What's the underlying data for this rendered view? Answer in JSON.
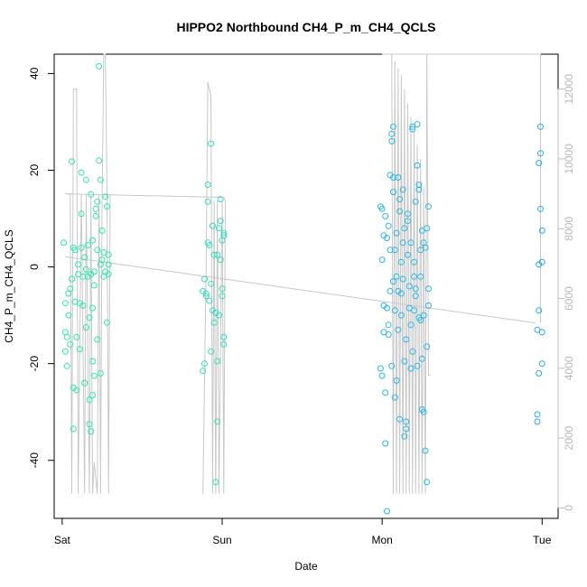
{
  "chart_data": {
    "type": "scatter",
    "title": "HIPPO2 Northbound CH4_P_m_CH4_QCLS",
    "xlabel": "Date",
    "ylabel": "CH4_P_m_CH4_QCLS",
    "x_ticks": [
      "Sat",
      "Sun",
      "Mon",
      "Tue"
    ],
    "y_ticks": [
      "-40",
      "-20",
      "0",
      "20",
      "40"
    ],
    "y2_ticks": [
      "0",
      "2000",
      "4000",
      "6000",
      "8000",
      "10000",
      "12000"
    ],
    "xlim": [
      -0.05,
      3.1
    ],
    "ylim": [
      -52,
      44
    ],
    "y2lim": [
      -300,
      13000
    ],
    "grid": false,
    "colors": {
      "sat_points": "#2de8a8",
      "sun_points": "#34dcc0",
      "mon_points": "#2bb6e3",
      "tue_points": "#26a9ea",
      "secondary_lines": "#c8c8c8",
      "axes": "#000000"
    },
    "series": [
      {
        "points": [
          {
            "x": 0.01,
            "y": 5
          },
          {
            "x": 0.02,
            "y": -7.5
          },
          {
            "x": 0.02,
            "y": -13.5
          },
          {
            "x": 0.02,
            "y": -17.5
          },
          {
            "x": 0.03,
            "y": -14.5
          },
          {
            "x": 0.03,
            "y": -20.5
          },
          {
            "x": 0.04,
            "y": -5.5
          },
          {
            "x": 0.04,
            "y": -10
          },
          {
            "x": 0.05,
            "y": -16
          },
          {
            "x": 0.05,
            "y": -4.5
          },
          {
            "x": 0.06,
            "y": 21.8
          },
          {
            "x": 0.06,
            "y": -2.5
          },
          {
            "x": 0.07,
            "y": 4
          },
          {
            "x": 0.07,
            "y": -25
          },
          {
            "x": 0.07,
            "y": -33.5
          },
          {
            "x": 0.08,
            "y": 3.5
          },
          {
            "x": 0.08,
            "y": -7.2
          },
          {
            "x": 0.09,
            "y": -25.5
          },
          {
            "x": 0.09,
            "y": -14.5
          },
          {
            "x": 0.1,
            "y": 0.5
          },
          {
            "x": 0.1,
            "y": -1.5
          },
          {
            "x": 0.11,
            "y": -7.5
          },
          {
            "x": 0.11,
            "y": -17
          },
          {
            "x": 0.12,
            "y": 19.5
          },
          {
            "x": 0.12,
            "y": 4
          },
          {
            "x": 0.12,
            "y": 11
          },
          {
            "x": 0.13,
            "y": -8
          },
          {
            "x": 0.13,
            "y": -2
          },
          {
            "x": 0.14,
            "y": -24
          },
          {
            "x": 0.14,
            "y": 2
          },
          {
            "x": 0.15,
            "y": -12.5
          },
          {
            "x": 0.15,
            "y": 18
          },
          {
            "x": 0.15,
            "y": -0.5
          },
          {
            "x": 0.16,
            "y": 4.5
          },
          {
            "x": 0.16,
            "y": -2
          },
          {
            "x": 0.17,
            "y": -27.5
          },
          {
            "x": 0.17,
            "y": -32.5
          },
          {
            "x": 0.17,
            "y": -10.5
          },
          {
            "x": 0.18,
            "y": 15
          },
          {
            "x": 0.18,
            "y": -1.5
          },
          {
            "x": 0.18,
            "y": -34
          },
          {
            "x": 0.19,
            "y": -26.5
          },
          {
            "x": 0.19,
            "y": -19.5
          },
          {
            "x": 0.19,
            "y": -8.5
          },
          {
            "x": 0.19,
            "y": 5.5
          },
          {
            "x": 0.2,
            "y": -1
          },
          {
            "x": 0.2,
            "y": -3.8
          },
          {
            "x": 0.2,
            "y": -22.5
          },
          {
            "x": 0.21,
            "y": 10.5
          },
          {
            "x": 0.21,
            "y": 12
          },
          {
            "x": 0.22,
            "y": -15
          },
          {
            "x": 0.22,
            "y": 13.5
          },
          {
            "x": 0.22,
            "y": 3.5
          },
          {
            "x": 0.23,
            "y": 41.5
          },
          {
            "x": 0.23,
            "y": 22
          },
          {
            "x": 0.24,
            "y": 18
          },
          {
            "x": 0.24,
            "y": -22
          },
          {
            "x": 0.24,
            "y": 0.5
          },
          {
            "x": 0.25,
            "y": 7.5
          },
          {
            "x": 0.25,
            "y": 1.5
          },
          {
            "x": 0.26,
            "y": -2
          },
          {
            "x": 0.26,
            "y": 3
          },
          {
            "x": 0.27,
            "y": -1
          },
          {
            "x": 0.27,
            "y": 14.5
          },
          {
            "x": 0.28,
            "y": 12.5
          },
          {
            "x": 0.28,
            "y": -11.5
          },
          {
            "x": 0.29,
            "y": 2.5
          },
          {
            "x": 0.29,
            "y": -1.5
          },
          {
            "x": 0.29,
            "y": 0.5
          }
        ],
        "color": "#2de8a8"
      },
      {
        "points": [
          {
            "x": 0.88,
            "y": -21.5
          },
          {
            "x": 0.88,
            "y": -5
          },
          {
            "x": 0.89,
            "y": -2.5
          },
          {
            "x": 0.89,
            "y": -20
          },
          {
            "x": 0.9,
            "y": -5.5
          },
          {
            "x": 0.9,
            "y": -6
          },
          {
            "x": 0.91,
            "y": 17
          },
          {
            "x": 0.91,
            "y": 13.5
          },
          {
            "x": 0.91,
            "y": 5
          },
          {
            "x": 0.92,
            "y": -7
          },
          {
            "x": 0.92,
            "y": 4.5
          },
          {
            "x": 0.93,
            "y": 25.5
          },
          {
            "x": 0.93,
            "y": -3.5
          },
          {
            "x": 0.93,
            "y": -17.5
          },
          {
            "x": 0.94,
            "y": 8.5
          },
          {
            "x": 0.94,
            "y": -9
          },
          {
            "x": 0.95,
            "y": -11.5
          },
          {
            "x": 0.95,
            "y": 2.5
          },
          {
            "x": 0.96,
            "y": -9.5
          },
          {
            "x": 0.96,
            "y": -44.5
          },
          {
            "x": 0.97,
            "y": -19.5
          },
          {
            "x": 0.97,
            "y": -32
          },
          {
            "x": 0.97,
            "y": 2.5
          },
          {
            "x": 0.98,
            "y": 8
          },
          {
            "x": 0.98,
            "y": -10
          },
          {
            "x": 0.99,
            "y": 1.5
          },
          {
            "x": 0.99,
            "y": 14
          },
          {
            "x": 0.99,
            "y": 9.5
          },
          {
            "x": 1.0,
            "y": -4.5
          },
          {
            "x": 1.0,
            "y": -6
          },
          {
            "x": 1.0,
            "y": 5.5
          },
          {
            "x": 1.01,
            "y": 7
          },
          {
            "x": 1.01,
            "y": 6.5
          },
          {
            "x": 1.01,
            "y": -16
          },
          {
            "x": 1.01,
            "y": -14.5
          }
        ],
        "color": "#34dcc0"
      },
      {
        "points": [
          {
            "x": 1.99,
            "y": 12.5
          },
          {
            "x": 1.99,
            "y": -21
          },
          {
            "x": 2.0,
            "y": 1.5
          },
          {
            "x": 2.0,
            "y": -22.5
          },
          {
            "x": 2.0,
            "y": 12
          },
          {
            "x": 2.01,
            "y": 6.5
          },
          {
            "x": 2.01,
            "y": -8
          },
          {
            "x": 2.01,
            "y": -13.5
          },
          {
            "x": 2.02,
            "y": 10.5
          },
          {
            "x": 2.02,
            "y": -26
          },
          {
            "x": 2.02,
            "y": -36.5
          },
          {
            "x": 2.03,
            "y": -8.5
          },
          {
            "x": 2.03,
            "y": -50.5
          },
          {
            "x": 2.03,
            "y": 6
          },
          {
            "x": 2.04,
            "y": -12
          },
          {
            "x": 2.04,
            "y": -14
          },
          {
            "x": 2.04,
            "y": 8.5
          },
          {
            "x": 2.05,
            "y": 3.5
          },
          {
            "x": 2.05,
            "y": -5
          },
          {
            "x": 2.05,
            "y": 19
          },
          {
            "x": 2.06,
            "y": -20.5
          },
          {
            "x": 2.06,
            "y": 26
          },
          {
            "x": 2.06,
            "y": 27.5
          },
          {
            "x": 2.07,
            "y": -3
          },
          {
            "x": 2.07,
            "y": 29
          },
          {
            "x": 2.07,
            "y": 18.5
          },
          {
            "x": 2.07,
            "y": 15.5
          },
          {
            "x": 2.08,
            "y": 3.5
          },
          {
            "x": 2.08,
            "y": -9
          },
          {
            "x": 2.08,
            "y": -27
          },
          {
            "x": 2.09,
            "y": 7
          },
          {
            "x": 2.09,
            "y": -2
          },
          {
            "x": 2.09,
            "y": -23.5
          },
          {
            "x": 2.1,
            "y": -13
          },
          {
            "x": 2.1,
            "y": 18.5
          },
          {
            "x": 2.1,
            "y": -5
          },
          {
            "x": 2.11,
            "y": -31.5
          },
          {
            "x": 2.11,
            "y": 14
          },
          {
            "x": 2.11,
            "y": 11.5
          },
          {
            "x": 2.12,
            "y": -5.5
          },
          {
            "x": 2.12,
            "y": 1
          },
          {
            "x": 2.12,
            "y": -10
          },
          {
            "x": 2.13,
            "y": 5
          },
          {
            "x": 2.13,
            "y": 16
          },
          {
            "x": 2.13,
            "y": -2.5
          },
          {
            "x": 2.14,
            "y": -35
          },
          {
            "x": 2.14,
            "y": -19.5
          },
          {
            "x": 2.14,
            "y": 8
          },
          {
            "x": 2.15,
            "y": -15
          },
          {
            "x": 2.15,
            "y": -32
          },
          {
            "x": 2.15,
            "y": -33.5
          },
          {
            "x": 2.16,
            "y": 2.5
          },
          {
            "x": 2.16,
            "y": 11
          },
          {
            "x": 2.16,
            "y": 9.5
          },
          {
            "x": 2.17,
            "y": -8.5
          },
          {
            "x": 2.17,
            "y": -4
          },
          {
            "x": 2.18,
            "y": 5
          },
          {
            "x": 2.18,
            "y": -12
          },
          {
            "x": 2.18,
            "y": -21
          },
          {
            "x": 2.19,
            "y": 28.5
          },
          {
            "x": 2.19,
            "y": 29
          },
          {
            "x": 2.19,
            "y": -17.5
          },
          {
            "x": 2.2,
            "y": -9
          },
          {
            "x": 2.2,
            "y": -2
          },
          {
            "x": 2.2,
            "y": 1
          },
          {
            "x": 2.21,
            "y": 13.5
          },
          {
            "x": 2.21,
            "y": -4.5
          },
          {
            "x": 2.21,
            "y": -6
          },
          {
            "x": 2.22,
            "y": 29.5
          },
          {
            "x": 2.22,
            "y": 21
          },
          {
            "x": 2.22,
            "y": -20.5
          },
          {
            "x": 2.23,
            "y": 17
          },
          {
            "x": 2.23,
            "y": -10.5
          },
          {
            "x": 2.23,
            "y": 16
          },
          {
            "x": 2.24,
            "y": -11
          },
          {
            "x": 2.24,
            "y": 3.5
          },
          {
            "x": 2.24,
            "y": -2
          },
          {
            "x": 2.25,
            "y": 7.5
          },
          {
            "x": 2.25,
            "y": -19
          },
          {
            "x": 2.25,
            "y": -29.5
          },
          {
            "x": 2.26,
            "y": 5
          },
          {
            "x": 2.26,
            "y": -30
          },
          {
            "x": 2.26,
            "y": -10
          },
          {
            "x": 2.27,
            "y": 4
          },
          {
            "x": 2.27,
            "y": -38
          },
          {
            "x": 2.28,
            "y": -16.5
          },
          {
            "x": 2.28,
            "y": -44.5
          },
          {
            "x": 2.28,
            "y": 8
          },
          {
            "x": 2.29,
            "y": -4.5
          },
          {
            "x": 2.29,
            "y": 12.5
          },
          {
            "x": 2.29,
            "y": -8
          }
        ],
        "color": "#2bb6e3"
      },
      {
        "points": [
          {
            "x": 2.97,
            "y": -30.5
          },
          {
            "x": 2.97,
            "y": -32
          },
          {
            "x": 2.97,
            "y": -13
          },
          {
            "x": 2.98,
            "y": -9
          },
          {
            "x": 2.98,
            "y": -22
          },
          {
            "x": 2.98,
            "y": 0.5
          },
          {
            "x": 2.98,
            "y": 21.5
          },
          {
            "x": 2.99,
            "y": 12
          },
          {
            "x": 2.99,
            "y": 29
          },
          {
            "x": 2.99,
            "y": 23.5
          },
          {
            "x": 3.0,
            "y": -20
          },
          {
            "x": 3.0,
            "y": -13.5
          },
          {
            "x": 3.0,
            "y": 7.5
          },
          {
            "x": 3.0,
            "y": 1
          }
        ],
        "color": "#26a9ea"
      }
    ],
    "secondary_series": [
      {
        "axis": "right",
        "type": "line",
        "x": [
          0.02,
          0.05,
          0.06,
          0.07,
          0.09,
          0.1,
          0.12,
          0.14,
          0.15,
          0.17,
          0.18,
          0.19,
          0.2,
          0.22,
          0.23,
          0.24,
          0.25,
          0.26,
          0.27,
          0.28,
          0.29,
          0.3
        ],
        "y": [
          9000,
          9000,
          400,
          12000,
          12000,
          400,
          9000,
          400,
          9000,
          400,
          9000,
          400,
          1300,
          400,
          9000,
          400,
          9000,
          13000,
          13000,
          9000,
          400,
          9000
        ],
        "color": "#c8c8c8"
      },
      {
        "axis": "right",
        "type": "line",
        "x": [
          0.88,
          0.9,
          0.91,
          0.93,
          0.94,
          0.95,
          0.96,
          0.97,
          0.98,
          1.0,
          1.01,
          1.02,
          1.01
        ],
        "y": [
          400,
          7000,
          12200,
          11800,
          400,
          8800,
          400,
          8800,
          400,
          8800,
          400,
          8800,
          8900
        ],
        "color": "#c8c8c8"
      },
      {
        "axis": "right",
        "type": "line",
        "x": [
          0.02,
          1.0
        ],
        "y": [
          9000,
          8900
        ],
        "color": "#c8c8c8"
      },
      {
        "axis": "right",
        "type": "line",
        "x": [
          2.0,
          2.06,
          2.07,
          2.08,
          2.09,
          2.1,
          2.11,
          2.12,
          2.13,
          2.14,
          2.15,
          2.16,
          2.17,
          2.18,
          2.19,
          2.2,
          2.21,
          2.22,
          2.23,
          2.24,
          2.25,
          2.26,
          2.27,
          2.28,
          2.29,
          2.3
        ],
        "y": [
          13000,
          13000,
          400,
          12800,
          400,
          12600,
          400,
          12400,
          400,
          12000,
          400,
          11600,
          400,
          11200,
          400,
          10800,
          400,
          10400,
          400,
          10000,
          400,
          9200,
          400,
          13000,
          3800,
          3800
        ],
        "color": "#c8c8c8"
      },
      {
        "axis": "right",
        "type": "line",
        "x": [
          2.0,
          2.99,
          2.99
        ],
        "y": [
          13000,
          13000,
          5300
        ],
        "color": "#c8c8c8"
      },
      {
        "axis": "right",
        "type": "line",
        "x": [
          0.02,
          2.96
        ],
        "y": [
          7200,
          5300
        ],
        "color": "#c8c8c8"
      }
    ]
  }
}
